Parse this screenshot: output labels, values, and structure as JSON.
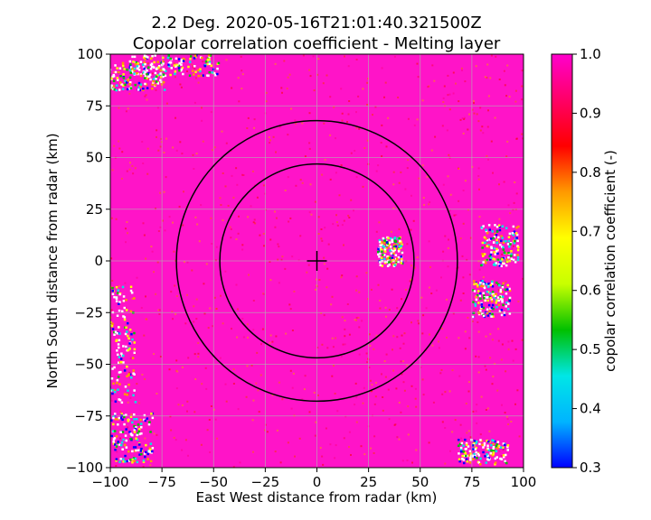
{
  "chart_data": {
    "type": "heatmap",
    "title_line1": "2.2 Deg. 2020-05-16T21:01:40.321500Z",
    "title_line2": "Copolar correlation coefficient - Melting layer",
    "xlabel": "East West distance from radar (km)",
    "ylabel": "North South distance from radar (km)",
    "xlim": [
      -100,
      100
    ],
    "ylim": [
      -100,
      100
    ],
    "xticks": [
      -100,
      -75,
      -50,
      -25,
      0,
      25,
      50,
      75,
      100
    ],
    "yticks": [
      -100,
      -75,
      -50,
      -25,
      0,
      25,
      50,
      75,
      100
    ],
    "grid": true,
    "colorbar": {
      "label": "copolar correlation coefficient (-)",
      "range": [
        0.3,
        1.0
      ],
      "ticks": [
        "0.3",
        "0.4",
        "0.5",
        "0.6",
        "0.7",
        "0.8",
        "0.9",
        "1.0"
      ],
      "colormap": [
        "#0000ff",
        "#00b4ff",
        "#00e6e6",
        "#00c000",
        "#c8ff00",
        "#ffff00",
        "#ff9900",
        "#ff0000",
        "#ff0066",
        "#ff00cc"
      ]
    },
    "field_background": "#ff14c8",
    "radar_center": [
      0,
      0
    ],
    "melting_layer_rings_km": [
      47,
      68
    ],
    "ring_color": "#000000"
  }
}
